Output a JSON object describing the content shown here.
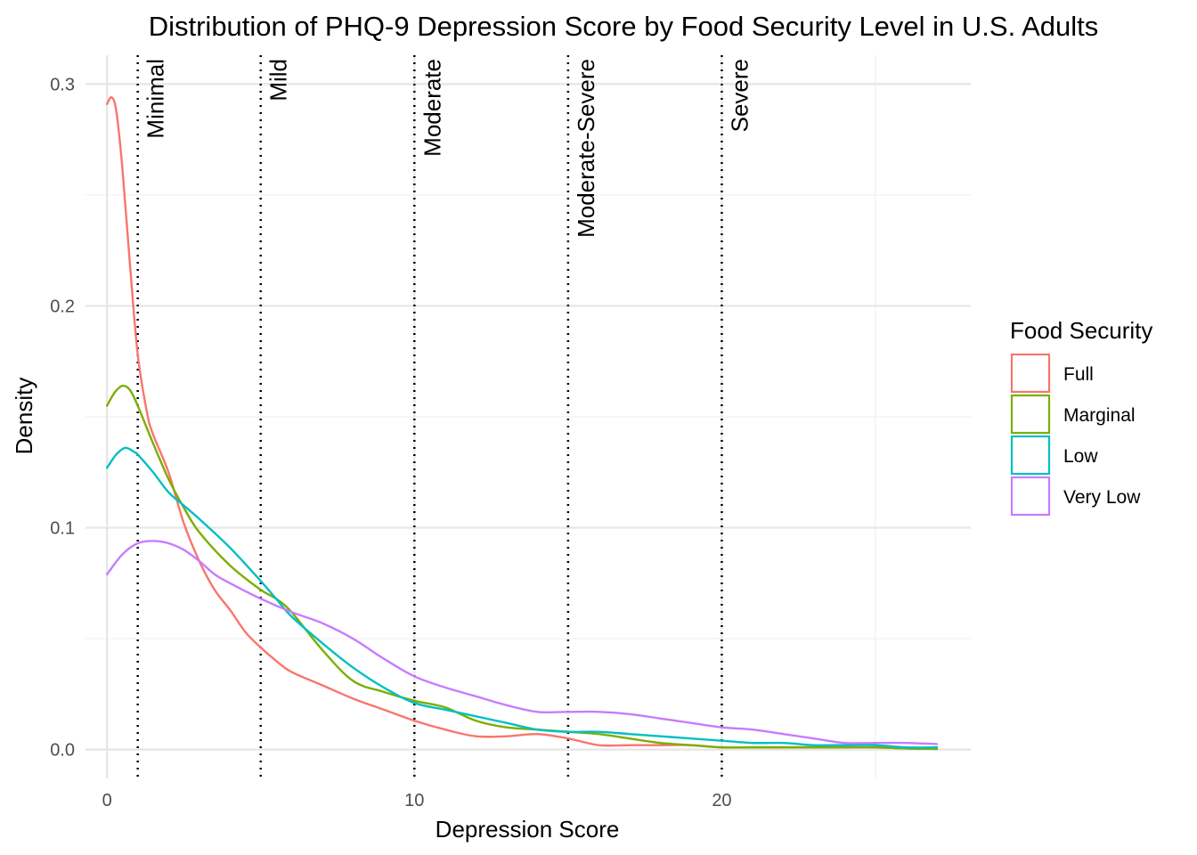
{
  "chart_data": {
    "type": "line",
    "title": "Distribution of PHQ-9 Depression Score by Food Security Level in U.S. Adults",
    "xlabel": "Depression Score",
    "ylabel": "Density",
    "xlim": [
      -0.7,
      28.1
    ],
    "ylim": [
      -0.013,
      0.313
    ],
    "x_ticks": [
      0,
      10,
      20
    ],
    "y_ticks": [
      0.0,
      0.1,
      0.2,
      0.3
    ],
    "x_tick_labels": [
      "0",
      "10",
      "20"
    ],
    "y_tick_labels": [
      "0.0",
      "0.1",
      "0.2",
      "0.3"
    ],
    "x_minor_ticks": [
      5,
      15,
      25
    ],
    "y_minor_ticks": [
      0.05,
      0.15,
      0.25
    ],
    "grid": true,
    "legend": {
      "title": "Food Security",
      "position": "right"
    },
    "cutoffs": [
      {
        "x": 1,
        "label": "Minimal"
      },
      {
        "x": 5,
        "label": "Mild"
      },
      {
        "x": 10,
        "label": "Moderate"
      },
      {
        "x": 15,
        "label": "Moderate-Severe"
      },
      {
        "x": 20,
        "label": "Severe"
      }
    ],
    "series": [
      {
        "name": "Full",
        "color": "#F8766D",
        "points": [
          [
            0,
            0.291
          ],
          [
            0.15,
            0.294
          ],
          [
            0.3,
            0.288
          ],
          [
            0.5,
            0.262
          ],
          [
            0.75,
            0.218
          ],
          [
            1,
            0.178
          ],
          [
            1.3,
            0.152
          ],
          [
            1.5,
            0.142
          ],
          [
            2,
            0.125
          ],
          [
            2.5,
            0.102
          ],
          [
            3,
            0.085
          ],
          [
            3.5,
            0.072
          ],
          [
            4,
            0.063
          ],
          [
            4.5,
            0.053
          ],
          [
            5,
            0.046
          ],
          [
            5.5,
            0.04
          ],
          [
            6,
            0.035
          ],
          [
            7,
            0.029
          ],
          [
            8,
            0.023
          ],
          [
            9,
            0.018
          ],
          [
            10,
            0.013
          ],
          [
            11,
            0.009
          ],
          [
            12,
            0.006
          ],
          [
            13,
            0.006
          ],
          [
            14,
            0.007
          ],
          [
            15,
            0.005
          ],
          [
            16,
            0.002
          ],
          [
            17,
            0.002
          ],
          [
            18,
            0.002
          ],
          [
            19,
            0.002
          ],
          [
            20,
            0.001
          ],
          [
            21,
            0.001
          ],
          [
            22,
            0.001
          ],
          [
            23,
            0.001
          ],
          [
            24,
            0.001
          ],
          [
            25,
            0.001
          ],
          [
            26,
            0.0005
          ],
          [
            27,
            0.0003
          ]
        ]
      },
      {
        "name": "Marginal",
        "color": "#7CAE00",
        "points": [
          [
            0,
            0.155
          ],
          [
            0.25,
            0.161
          ],
          [
            0.5,
            0.164
          ],
          [
            0.75,
            0.162
          ],
          [
            1,
            0.155
          ],
          [
            1.5,
            0.138
          ],
          [
            2,
            0.122
          ],
          [
            2.5,
            0.109
          ],
          [
            3,
            0.098
          ],
          [
            4,
            0.083
          ],
          [
            5,
            0.072
          ],
          [
            5.5,
            0.068
          ],
          [
            6,
            0.062
          ],
          [
            7,
            0.045
          ],
          [
            8,
            0.031
          ],
          [
            9,
            0.026
          ],
          [
            10,
            0.022
          ],
          [
            11,
            0.019
          ],
          [
            12,
            0.013
          ],
          [
            13,
            0.01
          ],
          [
            14,
            0.009
          ],
          [
            15,
            0.008
          ],
          [
            16,
            0.007
          ],
          [
            17,
            0.005
          ],
          [
            18,
            0.003
          ],
          [
            19,
            0.002
          ],
          [
            20,
            0.001
          ],
          [
            21,
            0.001
          ],
          [
            22,
            0.001
          ],
          [
            23,
            0.001
          ],
          [
            24,
            0.001
          ],
          [
            25,
            0.001
          ],
          [
            26,
            0.0005
          ],
          [
            27,
            0.0003
          ]
        ]
      },
      {
        "name": "Low",
        "color": "#00BFC4",
        "points": [
          [
            0,
            0.127
          ],
          [
            0.3,
            0.133
          ],
          [
            0.6,
            0.136
          ],
          [
            0.9,
            0.134
          ],
          [
            1,
            0.133
          ],
          [
            1.5,
            0.125
          ],
          [
            2,
            0.116
          ],
          [
            2.5,
            0.11
          ],
          [
            3,
            0.104
          ],
          [
            4,
            0.091
          ],
          [
            5,
            0.076
          ],
          [
            5.5,
            0.068
          ],
          [
            6,
            0.06
          ],
          [
            7,
            0.048
          ],
          [
            8,
            0.037
          ],
          [
            9,
            0.028
          ],
          [
            10,
            0.021
          ],
          [
            11,
            0.018
          ],
          [
            12,
            0.015
          ],
          [
            13,
            0.012
          ],
          [
            14,
            0.009
          ],
          [
            15,
            0.008
          ],
          [
            16,
            0.008
          ],
          [
            17,
            0.007
          ],
          [
            18,
            0.006
          ],
          [
            19,
            0.005
          ],
          [
            20,
            0.004
          ],
          [
            21,
            0.003
          ],
          [
            22,
            0.003
          ],
          [
            23,
            0.002
          ],
          [
            24,
            0.002
          ],
          [
            25,
            0.002
          ],
          [
            26,
            0.001
          ],
          [
            27,
            0.001
          ]
        ]
      },
      {
        "name": "Very Low",
        "color": "#C77CFF",
        "points": [
          [
            0,
            0.079
          ],
          [
            0.5,
            0.088
          ],
          [
            1,
            0.093
          ],
          [
            1.5,
            0.094
          ],
          [
            2,
            0.093
          ],
          [
            2.5,
            0.09
          ],
          [
            3,
            0.085
          ],
          [
            3.5,
            0.079
          ],
          [
            4,
            0.075
          ],
          [
            5,
            0.068
          ],
          [
            6,
            0.062
          ],
          [
            7,
            0.057
          ],
          [
            8,
            0.05
          ],
          [
            9,
            0.041
          ],
          [
            10,
            0.033
          ],
          [
            11,
            0.028
          ],
          [
            12,
            0.024
          ],
          [
            13,
            0.02
          ],
          [
            14,
            0.017
          ],
          [
            15,
            0.017
          ],
          [
            16,
            0.017
          ],
          [
            17,
            0.016
          ],
          [
            18,
            0.014
          ],
          [
            19,
            0.012
          ],
          [
            20,
            0.01
          ],
          [
            21,
            0.009
          ],
          [
            22,
            0.007
          ],
          [
            23,
            0.005
          ],
          [
            24,
            0.003
          ],
          [
            25,
            0.003
          ],
          [
            26,
            0.003
          ],
          [
            27,
            0.0025
          ]
        ]
      }
    ]
  }
}
